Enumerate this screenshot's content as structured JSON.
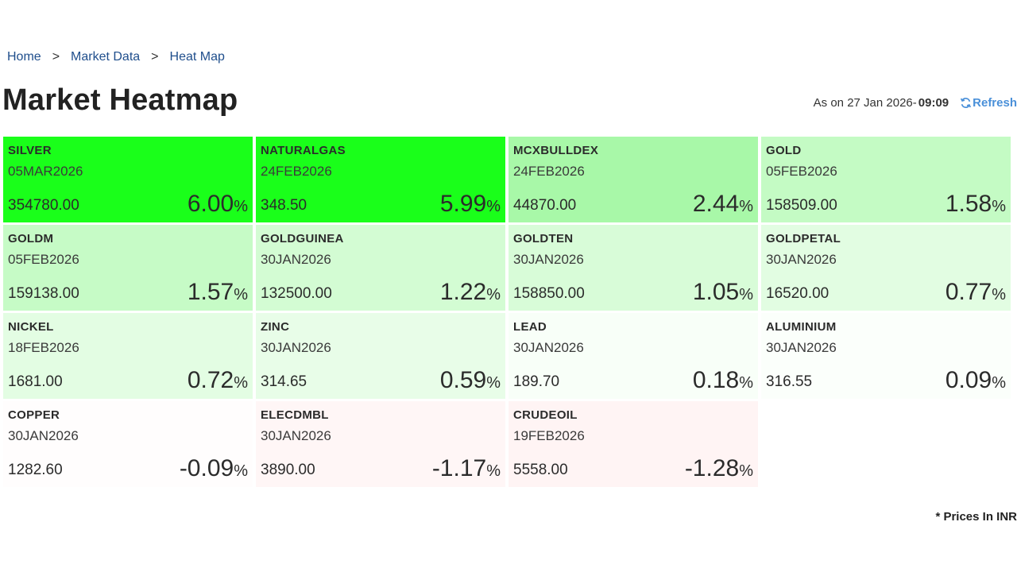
{
  "breadcrumb": {
    "items": [
      "Home",
      "Market Data",
      "Heat Map"
    ],
    "separator": ">"
  },
  "title": "Market Heatmap",
  "as_of": {
    "prefix": "As on 27 Jan 2026- ",
    "time": "09:09",
    "refresh_label": "Refresh",
    "refresh_icon": "refresh-icon"
  },
  "pct_symbol": "%",
  "tiles": [
    {
      "symbol": "SILVER",
      "expiry": "05MAR2026",
      "price": "354780.00",
      "change": "6.00",
      "color": "#1aff1a"
    },
    {
      "symbol": "NATURALGAS",
      "expiry": "24FEB2026",
      "price": "348.50",
      "change": "5.99",
      "color": "#1aff1a"
    },
    {
      "symbol": "MCXBULLDEX",
      "expiry": "24FEB2026",
      "price": "44870.00",
      "change": "2.44",
      "color": "#a8f8a8"
    },
    {
      "symbol": "GOLD",
      "expiry": "05FEB2026",
      "price": "158509.00",
      "change": "1.58",
      "color": "#c4fbc4"
    },
    {
      "symbol": "GOLDM",
      "expiry": "05FEB2026",
      "price": "159138.00",
      "change": "1.57",
      "color": "#c6fbc6"
    },
    {
      "symbol": "GOLDGUINEA",
      "expiry": "30JAN2026",
      "price": "132500.00",
      "change": "1.22",
      "color": "#d3fcd3"
    },
    {
      "symbol": "GOLDTEN",
      "expiry": "30JAN2026",
      "price": "158850.00",
      "change": "1.05",
      "color": "#d8fcd8"
    },
    {
      "symbol": "GOLDPETAL",
      "expiry": "30JAN2026",
      "price": "16520.00",
      "change": "0.77",
      "color": "#e2fde2"
    },
    {
      "symbol": "NICKEL",
      "expiry": "18FEB2026",
      "price": "1681.00",
      "change": "0.72",
      "color": "#e3fde3"
    },
    {
      "symbol": "ZINC",
      "expiry": "30JAN2026",
      "price": "314.65",
      "change": "0.59",
      "color": "#e8fde8"
    },
    {
      "symbol": "LEAD",
      "expiry": "30JAN2026",
      "price": "189.70",
      "change": "0.18",
      "color": "#f8fff8"
    },
    {
      "symbol": "ALUMINIUM",
      "expiry": "30JAN2026",
      "price": "316.55",
      "change": "0.09",
      "color": "#fbfffb"
    },
    {
      "symbol": "COPPER",
      "expiry": "30JAN2026",
      "price": "1282.60",
      "change": "-0.09",
      "color": "#fffdfd"
    },
    {
      "symbol": "ELECDMBL",
      "expiry": "30JAN2026",
      "price": "3890.00",
      "change": "-1.17",
      "color": "#fff6f6"
    },
    {
      "symbol": "CRUDEOIL",
      "expiry": "19FEB2026",
      "price": "5558.00",
      "change": "-1.28",
      "color": "#fff4f4"
    }
  ],
  "note": "* Prices In INR"
}
